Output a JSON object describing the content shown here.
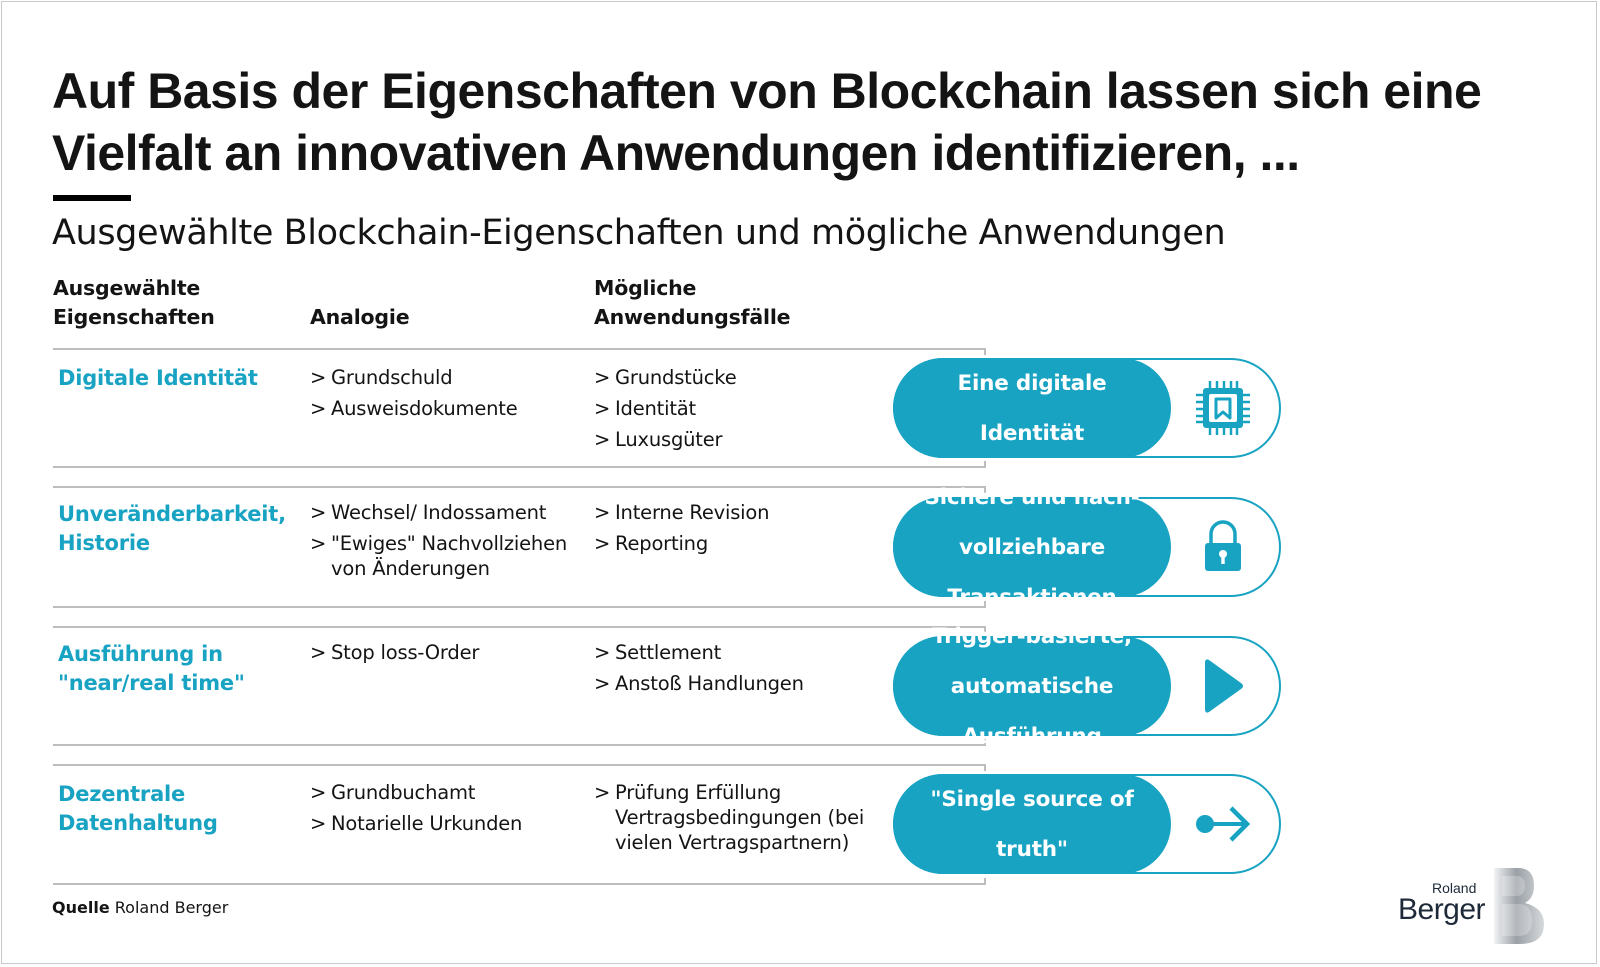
{
  "title_line1": "Auf Basis der Eigenschaften von Blockchain lassen sich eine",
  "title_line2": "Vielfalt an innovativen Anwendungen identifizieren, ...",
  "subtitle": "Ausgewählte Blockchain-Eigenschaften und mögliche Anwendungen",
  "headers": {
    "properties_l1": "Ausgewählte",
    "properties_l2": "Eigenschaften",
    "analogy": "Analogie",
    "usecases_l1": "Mögliche",
    "usecases_l2": "Anwendungsfälle"
  },
  "rows": [
    {
      "property": [
        "Digitale Identität"
      ],
      "analogies": [
        "Grundschuld",
        "Ausweisdokumente"
      ],
      "usecases": [
        "Grundstücke",
        "Identität",
        "Luxusgüter"
      ],
      "pill": [
        "Eine digitale",
        "Identität"
      ],
      "icon": "chip-icon"
    },
    {
      "property": [
        "Unveränderbarkeit,",
        "Historie"
      ],
      "analogies": [
        "Wechsel/ Indossament",
        "\"Ewiges\" Nachvollziehen von Änderungen"
      ],
      "usecases": [
        "Interne Revision",
        "Reporting"
      ],
      "pill": [
        "Sichere und nach-",
        "vollziehbare",
        "Transaktionen"
      ],
      "icon": "lock-icon"
    },
    {
      "property": [
        "Ausführung in",
        "\"near/real time\""
      ],
      "analogies": [
        "Stop loss-Order"
      ],
      "usecases": [
        "Settlement",
        "Anstoß Handlungen"
      ],
      "pill": [
        "Trigger-basierte,",
        "automatische",
        "Ausführung"
      ],
      "icon": "play-icon"
    },
    {
      "property": [
        "Dezentrale",
        "Datenhaltung"
      ],
      "analogies": [
        "Grundbuchamt",
        "Notarielle Urkunden"
      ],
      "usecases": [
        "Prüfung Erfüllung Vertragsbedingungen (bei vielen Vertragspartnern)"
      ],
      "pill": [
        "\"Single source of",
        "truth\""
      ],
      "icon": "dot-arrow-icon"
    }
  ],
  "source_label": "Quelle",
  "source_text": "Roland Berger",
  "logo_line1": "Roland",
  "logo_line2": "Berger",
  "colors": {
    "accent": "#19a3c3",
    "text": "#141414",
    "rule": "#bdbdbd"
  }
}
